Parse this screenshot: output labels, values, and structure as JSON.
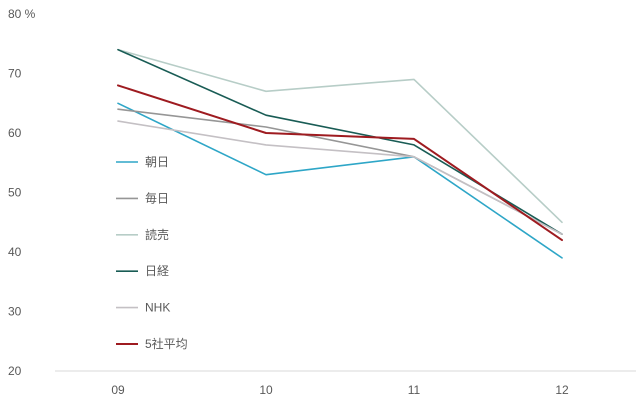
{
  "chart_data": {
    "type": "line",
    "title": "",
    "xlabel": "",
    "ylabel": "%",
    "ylim": [
      20,
      80
    ],
    "grid": false,
    "legend_position": "inside-left",
    "categories": [
      "09",
      "10",
      "11",
      "12"
    ],
    "y_tick_labels": [
      "80 %",
      "70",
      "60",
      "50",
      "40",
      "30",
      "20"
    ],
    "y_tick_values": [
      80,
      70,
      60,
      50,
      40,
      30,
      20
    ],
    "series": [
      {
        "name": "朝日",
        "color": "#2ea6c7",
        "width": 1.6,
        "values": [
          65,
          53,
          56,
          39
        ]
      },
      {
        "name": "毎日",
        "color": "#969696",
        "width": 1.6,
        "values": [
          64,
          61,
          56,
          43
        ]
      },
      {
        "name": "読売",
        "color": "#b7cdc7",
        "width": 1.6,
        "values": [
          74,
          67,
          69,
          45
        ]
      },
      {
        "name": "日経",
        "color": "#195c55",
        "width": 1.6,
        "values": [
          74,
          63,
          58,
          43
        ]
      },
      {
        "name": "NHK",
        "color": "#c4c0c4",
        "width": 1.6,
        "values": [
          62,
          58,
          56,
          43
        ]
      },
      {
        "name": "5社平均",
        "color": "#9e1b20",
        "width": 2.0,
        "values": [
          68,
          60,
          59,
          42
        ]
      }
    ],
    "axis_color": "#d9d9d9",
    "text_color": "#595959"
  }
}
